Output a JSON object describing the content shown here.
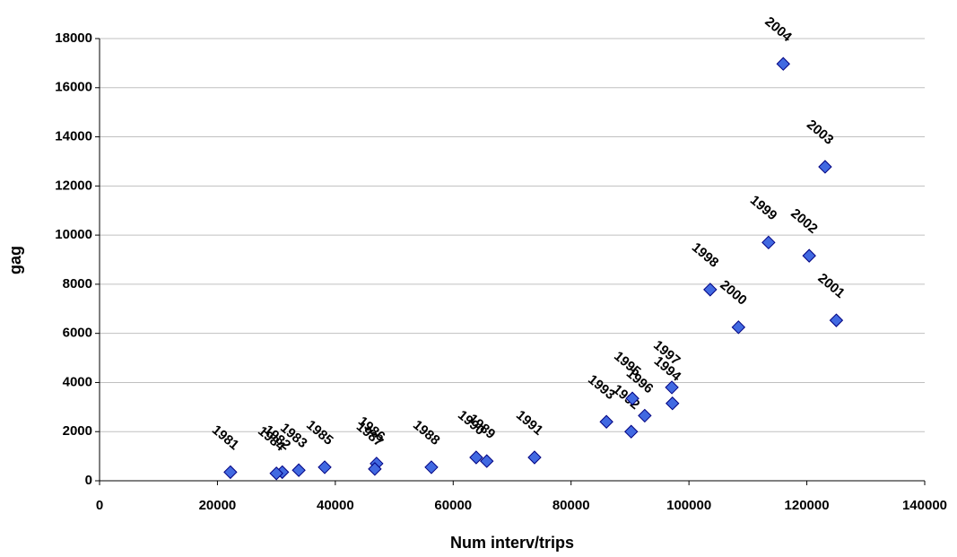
{
  "chart_data": {
    "type": "scatter",
    "x_label": "Num interv/trips",
    "y_label": "gag",
    "x": [
      22200,
      31000,
      33800,
      30000,
      38200,
      47000,
      46700,
      56300,
      65700,
      63900,
      73800,
      90200,
      86000,
      97200,
      90400,
      92500,
      97100,
      103600,
      113500,
      108400,
      125000,
      120400,
      123100,
      116000
    ],
    "series": [
      {
        "color": "#4169e1",
        "values": [
          350,
          350,
          430,
          300,
          550,
          700,
          480,
          550,
          800,
          950,
          950,
          2000,
          2400,
          3150,
          3350,
          2650,
          3800,
          7780,
          9700,
          6250,
          6530,
          9160,
          12780,
          16970
        ],
        "point_labels": [
          "1981",
          "1982",
          "1983",
          "1984",
          "1985",
          "1986",
          "1987",
          "1988",
          "1989",
          "1990",
          "1991",
          "1992",
          "1993",
          "1994",
          "1995",
          "1996",
          "1997",
          "1998",
          "1999",
          "2000",
          "2001",
          "2002",
          "2003",
          "2004"
        ]
      }
    ],
    "xlim": [
      0,
      140000
    ],
    "xticks": [
      0,
      20000,
      40000,
      60000,
      80000,
      100000,
      120000,
      140000
    ],
    "ylim": [
      0,
      18000
    ],
    "yticks": [
      0,
      2000,
      4000,
      6000,
      8000,
      10000,
      12000,
      14000,
      16000,
      18000
    ],
    "grid": true
  }
}
